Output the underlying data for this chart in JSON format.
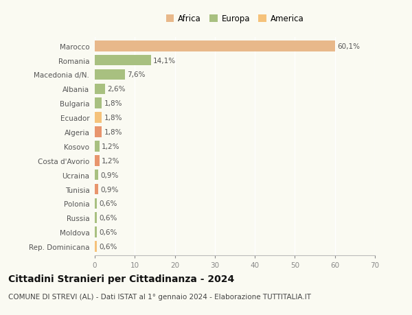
{
  "categories": [
    "Rep. Dominicana",
    "Moldova",
    "Russia",
    "Polonia",
    "Tunisia",
    "Ucraina",
    "Costa d'Avorio",
    "Kosovo",
    "Algeria",
    "Ecuador",
    "Bulgaria",
    "Albania",
    "Macedonia d/N.",
    "Romania",
    "Marocco"
  ],
  "values": [
    0.6,
    0.6,
    0.6,
    0.6,
    0.9,
    0.9,
    1.2,
    1.2,
    1.8,
    1.8,
    1.8,
    2.6,
    7.6,
    14.1,
    60.1
  ],
  "colors": [
    "#f5c27a",
    "#a8c080",
    "#a8c080",
    "#a8c080",
    "#e8956d",
    "#a8c080",
    "#e8956d",
    "#a8c080",
    "#e8956d",
    "#f5c27a",
    "#a8c080",
    "#a8c080",
    "#a8c080",
    "#a8c080",
    "#e8b88a"
  ],
  "labels": [
    "0,6%",
    "0,6%",
    "0,6%",
    "0,6%",
    "0,9%",
    "0,9%",
    "1,2%",
    "1,2%",
    "1,8%",
    "1,8%",
    "1,8%",
    "2,6%",
    "7,6%",
    "14,1%",
    "60,1%"
  ],
  "xlim": [
    0,
    70
  ],
  "xticks": [
    0,
    10,
    20,
    30,
    40,
    50,
    60,
    70
  ],
  "title": "Cittadini Stranieri per Cittadinanza - 2024",
  "subtitle": "COMUNE DI STREVI (AL) - Dati ISTAT al 1° gennaio 2024 - Elaborazione TUTTITALIA.IT",
  "legend_labels": [
    "Africa",
    "Europa",
    "America"
  ],
  "legend_colors": [
    "#e8b88a",
    "#a8c080",
    "#f5c27a"
  ],
  "background_color": "#fafaf2",
  "grid_color": "#ffffff",
  "bar_height": 0.75,
  "title_fontsize": 10,
  "subtitle_fontsize": 7.5,
  "tick_fontsize": 7.5,
  "label_fontsize": 7.5,
  "legend_fontsize": 8.5
}
